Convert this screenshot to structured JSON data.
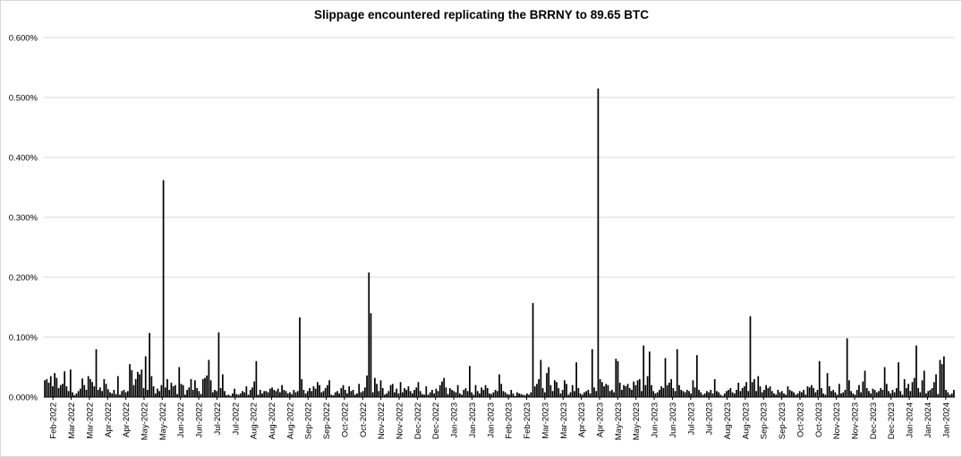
{
  "chart_data": {
    "type": "bar",
    "title": "Slippage encountered replicating the BRRNY to 89.65 BTC",
    "xlabel": "",
    "ylabel": "",
    "ylim": [
      0,
      0.6
    ],
    "y_ticks": [
      "0.000%",
      "0.100%",
      "0.200%",
      "0.300%",
      "0.400%",
      "0.500%",
      "0.600%"
    ],
    "x_tick_labels": [
      "Feb-2022",
      "Mar-2022",
      "Mar-2022",
      "Apr-2022",
      "Apr-2022",
      "May-2022",
      "May-2022",
      "Jun-2022",
      "Jun-2022",
      "Jul-2022",
      "Jul-2022",
      "Aug-2022",
      "Aug-2022",
      "Aug-2022",
      "Sep-2022",
      "Sep-2022",
      "Oct-2022",
      "Oct-2022",
      "Nov-2022",
      "Nov-2022",
      "Dec-2022",
      "Dec-2022",
      "Jan-2023",
      "Jan-2023",
      "Jan-2023",
      "Feb-2023",
      "Feb-2023",
      "Mar-2023",
      "Mar-2023",
      "Apr-2023",
      "Apr-2023",
      "May-2023",
      "May-2023",
      "Jun-2023",
      "Jun-2023",
      "Jul-2023",
      "Jul-2023",
      "Aug-2023",
      "Aug-2023",
      "Sep-2023",
      "Sep-2023",
      "Oct-2023",
      "Oct-2023",
      "Nov-2023",
      "Nov-2023",
      "Dec-2023",
      "Dec-2023",
      "Jan-2024",
      "Jan-2024",
      "Jan-2024"
    ],
    "grid": "horizontal",
    "legend": "none",
    "bar_color": "#000000",
    "values": [
      0.028,
      0.03,
      0.024,
      0.035,
      0.018,
      0.04,
      0.032,
      0.015,
      0.02,
      0.022,
      0.043,
      0.018,
      0.01,
      0.046,
      0.008,
      0.003,
      0.006,
      0.01,
      0.014,
      0.031,
      0.02,
      0.012,
      0.035,
      0.03,
      0.025,
      0.018,
      0.08,
      0.012,
      0.016,
      0.01,
      0.03,
      0.022,
      0.013,
      0.008,
      0.006,
      0.012,
      0.005,
      0.035,
      0.004,
      0.01,
      0.012,
      0.008,
      0.01,
      0.055,
      0.045,
      0.02,
      0.03,
      0.042,
      0.038,
      0.046,
      0.015,
      0.068,
      0.012,
      0.107,
      0.035,
      0.018,
      0.006,
      0.014,
      0.01,
      0.02,
      0.362,
      0.016,
      0.03,
      0.012,
      0.024,
      0.018,
      0.02,
      0.005,
      0.05,
      0.022,
      0.02,
      0.004,
      0.012,
      0.016,
      0.03,
      0.012,
      0.028,
      0.015,
      0.01,
      0.005,
      0.03,
      0.032,
      0.036,
      0.062,
      0.028,
      0.008,
      0.012,
      0.01,
      0.108,
      0.015,
      0.038,
      0.01,
      0.003,
      0.004,
      0.002,
      0.006,
      0.014,
      0.005,
      0.004,
      0.006,
      0.01,
      0.008,
      0.018,
      0.004,
      0.012,
      0.016,
      0.026,
      0.06,
      0.004,
      0.012,
      0.006,
      0.01,
      0.01,
      0.008,
      0.014,
      0.016,
      0.012,
      0.01,
      0.014,
      0.008,
      0.02,
      0.012,
      0.01,
      0.006,
      0.008,
      0.005,
      0.012,
      0.008,
      0.01,
      0.133,
      0.03,
      0.012,
      0.006,
      0.01,
      0.015,
      0.01,
      0.018,
      0.014,
      0.025,
      0.02,
      0.008,
      0.01,
      0.015,
      0.02,
      0.028,
      0.004,
      0.003,
      0.008,
      0.01,
      0.006,
      0.015,
      0.02,
      0.012,
      0.006,
      0.018,
      0.01,
      0.012,
      0.004,
      0.006,
      0.022,
      0.008,
      0.01,
      0.016,
      0.036,
      0.208,
      0.14,
      0.008,
      0.032,
      0.022,
      0.01,
      0.028,
      0.015,
      0.004,
      0.006,
      0.01,
      0.02,
      0.022,
      0.008,
      0.014,
      0.006,
      0.025,
      0.008,
      0.015,
      0.012,
      0.018,
      0.01,
      0.006,
      0.012,
      0.016,
      0.025,
      0.01,
      0.005,
      0.004,
      0.018,
      0.004,
      0.008,
      0.012,
      0.006,
      0.014,
      0.01,
      0.02,
      0.026,
      0.032,
      0.016,
      0.005,
      0.015,
      0.012,
      0.01,
      0.008,
      0.02,
      0.006,
      0.004,
      0.012,
      0.015,
      0.01,
      0.052,
      0.008,
      0.004,
      0.02,
      0.01,
      0.006,
      0.016,
      0.012,
      0.02,
      0.015,
      0.006,
      0.005,
      0.008,
      0.012,
      0.01,
      0.038,
      0.022,
      0.01,
      0.008,
      0.005,
      0.004,
      0.012,
      0.006,
      0.002,
      0.008,
      0.006,
      0.005,
      0.004,
      0.003,
      0.006,
      0.004,
      0.008,
      0.157,
      0.018,
      0.022,
      0.03,
      0.062,
      0.015,
      0.008,
      0.04,
      0.05,
      0.02,
      0.01,
      0.028,
      0.025,
      0.015,
      0.006,
      0.012,
      0.028,
      0.022,
      0.004,
      0.008,
      0.02,
      0.01,
      0.058,
      0.015,
      0.006,
      0.004,
      0.008,
      0.01,
      0.012,
      0.006,
      0.08,
      0.016,
      0.01,
      0.515,
      0.03,
      0.025,
      0.018,
      0.022,
      0.02,
      0.01,
      0.012,
      0.008,
      0.064,
      0.06,
      0.024,
      0.012,
      0.02,
      0.018,
      0.022,
      0.015,
      0.012,
      0.026,
      0.02,
      0.028,
      0.03,
      0.01,
      0.086,
      0.02,
      0.035,
      0.076,
      0.02,
      0.01,
      0.006,
      0.008,
      0.012,
      0.018,
      0.015,
      0.065,
      0.02,
      0.024,
      0.03,
      0.015,
      0.01,
      0.08,
      0.02,
      0.012,
      0.01,
      0.008,
      0.012,
      0.01,
      0.006,
      0.028,
      0.016,
      0.07,
      0.012,
      0.008,
      0.004,
      0.006,
      0.01,
      0.008,
      0.012,
      0.006,
      0.03,
      0.01,
      0.008,
      0.004,
      0.002,
      0.006,
      0.01,
      0.012,
      0.015,
      0.008,
      0.006,
      0.012,
      0.024,
      0.01,
      0.015,
      0.018,
      0.025,
      0.01,
      0.135,
      0.025,
      0.03,
      0.01,
      0.035,
      0.018,
      0.008,
      0.012,
      0.02,
      0.015,
      0.018,
      0.01,
      0.006,
      0.004,
      0.012,
      0.008,
      0.01,
      0.006,
      0.004,
      0.018,
      0.012,
      0.01,
      0.008,
      0.004,
      0.006,
      0.01,
      0.008,
      0.012,
      0.004,
      0.018,
      0.016,
      0.02,
      0.015,
      0.008,
      0.012,
      0.06,
      0.015,
      0.006,
      0.004,
      0.04,
      0.018,
      0.01,
      0.012,
      0.008,
      0.004,
      0.022,
      0.006,
      0.008,
      0.012,
      0.098,
      0.028,
      0.01,
      0.006,
      0.004,
      0.012,
      0.02,
      0.008,
      0.026,
      0.044,
      0.015,
      0.01,
      0.006,
      0.014,
      0.012,
      0.008,
      0.01,
      0.015,
      0.012,
      0.05,
      0.022,
      0.01,
      0.006,
      0.012,
      0.008,
      0.015,
      0.058,
      0.01,
      0.004,
      0.03,
      0.015,
      0.022,
      0.01,
      0.025,
      0.032,
      0.086,
      0.015,
      0.008,
      0.028,
      0.044,
      0.006,
      0.01,
      0.012,
      0.015,
      0.025,
      0.038,
      0.005,
      0.062,
      0.055,
      0.068,
      0.012,
      0.008,
      0.004,
      0.006,
      0.012
    ]
  }
}
